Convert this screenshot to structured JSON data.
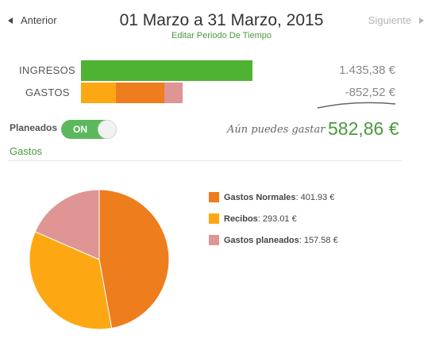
{
  "header": {
    "prev_label": "Anterior",
    "next_label": "Siguiente",
    "title": "01 Marzo a 31 Marzo, 2015",
    "edit_link": "Editar Periodo De Tiempo"
  },
  "summary": {
    "income_label": "INGRESOS",
    "income_amount": "1.435,38 €",
    "income_color": "#4eb233",
    "expenses_label": "GASTOS",
    "expenses_amount": "-852,52 €",
    "income_value": 1435.38,
    "expense_segments": [
      {
        "name": "Recibos",
        "value": 293.01,
        "color": "#fda812"
      },
      {
        "name": "Gastos Normales",
        "value": 401.93,
        "color": "#ee7d1e"
      },
      {
        "name": "Gastos planeados",
        "value": 157.58,
        "color": "#df9593"
      }
    ]
  },
  "planned": {
    "label": "Planeados",
    "toggle_label": "ON",
    "toggle_color": "#5cb85c"
  },
  "budget": {
    "can_spend_label": "Aún puedes gastar",
    "can_spend_value": "582,86 €"
  },
  "expenses": {
    "section_title": "Gastos"
  },
  "chart_data": {
    "type": "pie",
    "title": "",
    "series": [
      {
        "name": "Gastos Normales",
        "value": 401.93,
        "display": "401.93 €",
        "color": "#ee7d1e"
      },
      {
        "name": "Recibos",
        "value": 293.01,
        "display": "293.01 €",
        "color": "#fda812"
      },
      {
        "name": "Gastos planeados",
        "value": 157.58,
        "display": "157.58 €",
        "color": "#df9593"
      }
    ],
    "legend_position": "right"
  }
}
